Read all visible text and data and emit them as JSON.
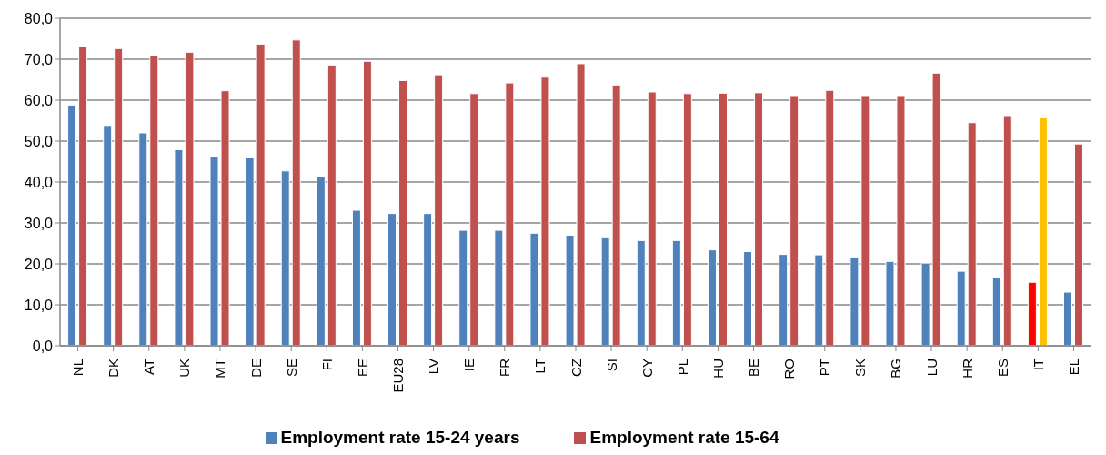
{
  "chart_data": {
    "type": "bar",
    "categories": [
      "NL",
      "DK",
      "AT",
      "UK",
      "MT",
      "DE",
      "SE",
      "FI",
      "EE",
      "EU28",
      "LV",
      "IE",
      "FR",
      "LT",
      "CZ",
      "SI",
      "CY",
      "PL",
      "HU",
      "BE",
      "RO",
      "PT",
      "SK",
      "BG",
      "LU",
      "HR",
      "ES",
      "IT",
      "EL"
    ],
    "series": [
      {
        "name": "Employment rate 15-24 years",
        "color": "#4f81bd",
        "colors": [
          "#4f81bd",
          "#4f81bd",
          "#4f81bd",
          "#4f81bd",
          "#4f81bd",
          "#4f81bd",
          "#4f81bd",
          "#4f81bd",
          "#4f81bd",
          "#4f81bd",
          "#4f81bd",
          "#4f81bd",
          "#4f81bd",
          "#4f81bd",
          "#4f81bd",
          "#4f81bd",
          "#4f81bd",
          "#4f81bd",
          "#4f81bd",
          "#4f81bd",
          "#4f81bd",
          "#4f81bd",
          "#4f81bd",
          "#4f81bd",
          "#4f81bd",
          "#4f81bd",
          "#4f81bd",
          "#ff0000",
          "#4f81bd"
        ],
        "values": [
          58.7,
          53.6,
          52.0,
          47.9,
          46.1,
          45.9,
          42.7,
          41.3,
          33.1,
          32.3,
          32.3,
          28.2,
          28.2,
          27.5,
          27.0,
          26.6,
          25.7,
          25.7,
          23.4,
          23.0,
          22.3,
          22.2,
          21.6,
          20.6,
          20.2,
          18.2,
          16.6,
          15.5,
          13.1
        ]
      },
      {
        "name": "Employment rate 15-64",
        "color": "#c0504d",
        "colors": [
          "#c0504d",
          "#c0504d",
          "#c0504d",
          "#c0504d",
          "#c0504d",
          "#c0504d",
          "#c0504d",
          "#c0504d",
          "#c0504d",
          "#c0504d",
          "#c0504d",
          "#c0504d",
          "#c0504d",
          "#c0504d",
          "#c0504d",
          "#c0504d",
          "#c0504d",
          "#c0504d",
          "#c0504d",
          "#c0504d",
          "#c0504d",
          "#c0504d",
          "#c0504d",
          "#c0504d",
          "#c0504d",
          "#c0504d",
          "#c0504d",
          "#ffc000",
          "#c0504d"
        ],
        "values": [
          73.0,
          72.6,
          71.0,
          71.7,
          62.3,
          73.6,
          74.7,
          68.6,
          69.5,
          64.8,
          66.2,
          61.6,
          64.2,
          65.6,
          68.9,
          63.7,
          62.0,
          61.6,
          61.7,
          61.8,
          60.9,
          62.4,
          60.9,
          60.9,
          66.6,
          54.5,
          56.0,
          55.7,
          49.3
        ]
      }
    ],
    "ylim": [
      0,
      80
    ],
    "yticks": [
      {
        "value": 0,
        "label": "0,0"
      },
      {
        "value": 10,
        "label": "10,0"
      },
      {
        "value": 20,
        "label": "20,0"
      },
      {
        "value": 30,
        "label": "30,0"
      },
      {
        "value": 40,
        "label": "40,0"
      },
      {
        "value": 50,
        "label": "50,0"
      },
      {
        "value": 60,
        "label": "60,0"
      },
      {
        "value": 70,
        "label": "70,0"
      },
      {
        "value": 80,
        "label": "80,0"
      }
    ],
    "grid": "y",
    "legend": "bottom"
  }
}
